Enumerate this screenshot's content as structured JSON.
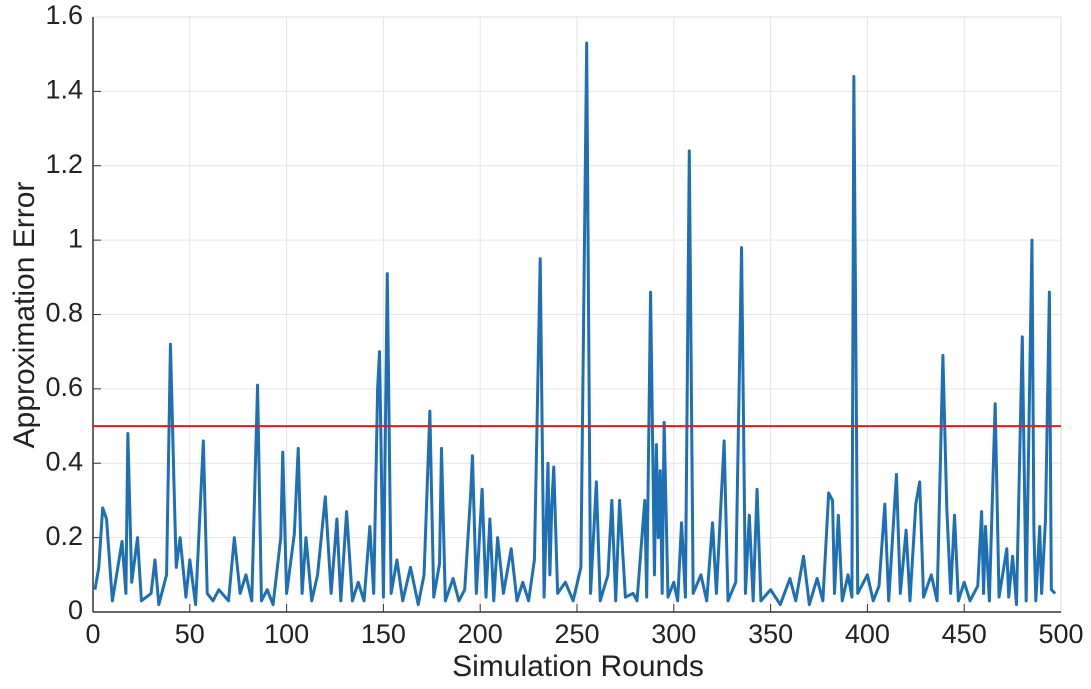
{
  "chart_data": {
    "type": "line",
    "xlabel": "Simulation Rounds",
    "ylabel": "Approximation Error",
    "xlim": [
      0,
      500
    ],
    "ylim": [
      0,
      1.6
    ],
    "xticks": [
      0,
      50,
      100,
      150,
      200,
      250,
      300,
      350,
      400,
      450,
      500
    ],
    "yticks": [
      0,
      0.2,
      0.4,
      0.6,
      0.8,
      1,
      1.2,
      1.4,
      1.6
    ],
    "grid": true,
    "hlines": [
      {
        "value": 0.5,
        "color": "#e31a1c"
      }
    ],
    "x": [
      1,
      3,
      5,
      7,
      10,
      15,
      17,
      18,
      20,
      23,
      25,
      30,
      32,
      34,
      38,
      40,
      42,
      43,
      45,
      48,
      50,
      53,
      57,
      59,
      62,
      65,
      70,
      73,
      76,
      79,
      82,
      85,
      87,
      90,
      93,
      97,
      98,
      100,
      104,
      106,
      108,
      110,
      113,
      116,
      120,
      123,
      126,
      128,
      131,
      134,
      137,
      140,
      143,
      145,
      147,
      148,
      150,
      152,
      154,
      157,
      160,
      164,
      168,
      171,
      174,
      176,
      179,
      180,
      182,
      186,
      189,
      192,
      195,
      196,
      198,
      201,
      203,
      205,
      207,
      209,
      212,
      216,
      219,
      222,
      225,
      228,
      231,
      233,
      235,
      236,
      237,
      238,
      240,
      244,
      248,
      252,
      255,
      257,
      260,
      262,
      266,
      268,
      270,
      272,
      275,
      279,
      281,
      285,
      286,
      288,
      290,
      291,
      292,
      293,
      294,
      295,
      297,
      300,
      302,
      304,
      306,
      308,
      310,
      314,
      317,
      320,
      322,
      326,
      328,
      332,
      335,
      337,
      339,
      341,
      343,
      345,
      350,
      355,
      360,
      363,
      367,
      370,
      374,
      377,
      380,
      382,
      383,
      385,
      387,
      390,
      392,
      393,
      395,
      400,
      403,
      406,
      409,
      411,
      415,
      417,
      420,
      422,
      425,
      427,
      429,
      433,
      436,
      439,
      441,
      443,
      445,
      447,
      450,
      453,
      457,
      459,
      460,
      461,
      463,
      466,
      468,
      472,
      473,
      475,
      477,
      480,
      482,
      485,
      486,
      487,
      489,
      490,
      492,
      494,
      495,
      497
    ],
    "series": [
      {
        "color": "#1f6fb4",
        "values": [
          0.06,
          0.12,
          0.28,
          0.25,
          0.03,
          0.19,
          0.05,
          0.48,
          0.08,
          0.2,
          0.03,
          0.05,
          0.14,
          0.02,
          0.1,
          0.72,
          0.31,
          0.12,
          0.2,
          0.04,
          0.14,
          0.02,
          0.46,
          0.05,
          0.03,
          0.06,
          0.03,
          0.2,
          0.05,
          0.1,
          0.03,
          0.61,
          0.03,
          0.06,
          0.02,
          0.2,
          0.43,
          0.05,
          0.21,
          0.44,
          0.05,
          0.2,
          0.03,
          0.1,
          0.31,
          0.05,
          0.25,
          0.03,
          0.27,
          0.03,
          0.08,
          0.03,
          0.23,
          0.05,
          0.6,
          0.7,
          0.04,
          0.91,
          0.05,
          0.14,
          0.03,
          0.12,
          0.02,
          0.1,
          0.54,
          0.04,
          0.13,
          0.44,
          0.03,
          0.09,
          0.03,
          0.06,
          0.31,
          0.42,
          0.05,
          0.33,
          0.04,
          0.25,
          0.03,
          0.2,
          0.05,
          0.17,
          0.03,
          0.08,
          0.03,
          0.14,
          0.95,
          0.04,
          0.4,
          0.1,
          0.29,
          0.39,
          0.05,
          0.08,
          0.03,
          0.12,
          1.53,
          0.05,
          0.35,
          0.03,
          0.1,
          0.3,
          0.03,
          0.3,
          0.04,
          0.05,
          0.03,
          0.3,
          0.04,
          0.86,
          0.1,
          0.45,
          0.2,
          0.38,
          0.05,
          0.51,
          0.04,
          0.08,
          0.03,
          0.24,
          0.04,
          1.24,
          0.05,
          0.1,
          0.03,
          0.24,
          0.05,
          0.46,
          0.03,
          0.08,
          0.98,
          0.05,
          0.26,
          0.03,
          0.33,
          0.03,
          0.06,
          0.02,
          0.09,
          0.03,
          0.15,
          0.02,
          0.09,
          0.03,
          0.32,
          0.3,
          0.05,
          0.26,
          0.03,
          0.1,
          0.04,
          1.44,
          0.05,
          0.1,
          0.03,
          0.07,
          0.29,
          0.03,
          0.37,
          0.05,
          0.22,
          0.03,
          0.29,
          0.35,
          0.04,
          0.1,
          0.03,
          0.69,
          0.28,
          0.05,
          0.26,
          0.03,
          0.08,
          0.03,
          0.07,
          0.27,
          0.05,
          0.23,
          0.03,
          0.56,
          0.04,
          0.17,
          0.04,
          0.15,
          0.02,
          0.74,
          0.03,
          1.0,
          0.22,
          0.03,
          0.23,
          0.05,
          0.25,
          0.86,
          0.06,
          0.05
        ]
      }
    ]
  }
}
